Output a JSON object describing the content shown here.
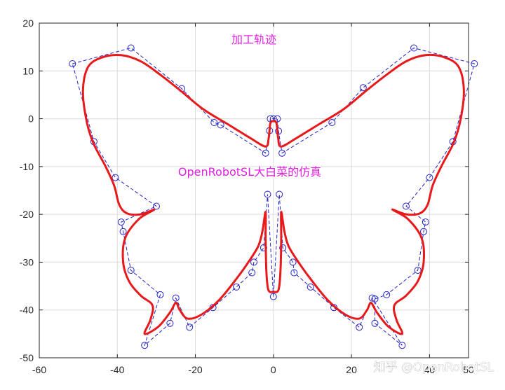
{
  "chart_data": {
    "type": "line",
    "title": "",
    "xlabel": "",
    "ylabel": "",
    "xlim": [
      -60,
      50
    ],
    "ylim": [
      -50,
      20
    ],
    "grid": true,
    "x_ticks": [
      -60,
      -40,
      -20,
      0,
      20,
      40,
      50
    ],
    "y_ticks": [
      -50,
      -40,
      -30,
      -20,
      -10,
      0,
      10,
      20
    ],
    "x_tick_labels": [
      "-60",
      "-40",
      "-20",
      "0",
      "20",
      "40",
      "50"
    ],
    "y_tick_labels": [
      "-50",
      "-40",
      "-30",
      "-20",
      "-10",
      "0",
      "10",
      "20"
    ],
    "annotations": [
      "加工轨迹",
      "OpenRobotSL大白菜的仿真"
    ],
    "watermark": "知乎 @OpenRobotSL",
    "colors": {
      "curve": "#e8191b",
      "control_polygon": "#2323c8",
      "control_points": "#2323c8",
      "annotation": "#e020e0",
      "grid": "#dcdcdc"
    },
    "series": [
      {
        "style": "control-polygon",
        "points": [
          [
            -51.5,
            11.5
          ],
          [
            -36.5,
            14.8
          ],
          [
            -23.5,
            6.3
          ],
          [
            -15.2,
            -0.8
          ],
          [
            -13.5,
            -1.3
          ],
          [
            -2.0,
            -7.2
          ],
          [
            -1.0,
            -2.5
          ],
          [
            -0.8,
            0.0
          ],
          [
            0.0,
            0.0
          ],
          [
            1.0,
            0.0
          ],
          [
            1.3,
            -2.6
          ],
          [
            2.2,
            -7.2
          ],
          [
            15.0,
            -0.8
          ],
          [
            23.0,
            6.5
          ],
          [
            36.0,
            14.8
          ],
          [
            51.5,
            11.5
          ],
          [
            46.0,
            -4.8
          ],
          [
            40.0,
            -12.3
          ],
          [
            34.0,
            -18.3
          ],
          [
            39.0,
            -21.6
          ],
          [
            38.5,
            -23.6
          ],
          [
            37.0,
            -31.7
          ],
          [
            29.0,
            -36.8
          ],
          [
            26.0,
            -37.7
          ],
          [
            26.0,
            -42.8
          ],
          [
            33.0,
            -47.4
          ],
          [
            25.3,
            -37.5
          ],
          [
            22.0,
            -43.6
          ],
          [
            15.5,
            -39.5
          ],
          [
            9.5,
            -35.2
          ],
          [
            5.3,
            -32.2
          ],
          [
            5.0,
            -30.0
          ],
          [
            2.4,
            -27.0
          ],
          [
            1.5,
            -15.8
          ],
          [
            0.0,
            -37.2
          ],
          [
            -1.5,
            -15.8
          ],
          [
            -2.5,
            -27.0
          ],
          [
            -5.0,
            -30.0
          ],
          [
            -5.5,
            -32.2
          ],
          [
            -9.5,
            -35.2
          ],
          [
            -15.5,
            -39.5
          ],
          [
            -21.5,
            -43.6
          ],
          [
            -25.0,
            -37.5
          ],
          [
            -26.5,
            -42.8
          ],
          [
            -33.0,
            -47.4
          ],
          [
            -29.0,
            -36.8
          ],
          [
            -36.5,
            -31.7
          ],
          [
            -38.5,
            -23.6
          ],
          [
            -39.0,
            -21.6
          ],
          [
            -30.0,
            -18.3
          ],
          [
            -40.5,
            -12.3
          ],
          [
            -46.0,
            -4.8
          ],
          [
            -51.5,
            11.5
          ]
        ]
      },
      {
        "style": "curve",
        "points": [
          [
            -2.0,
            -5.8
          ],
          [
            -6.0,
            -4.0
          ],
          [
            -12.0,
            -1.0
          ],
          [
            -18.0,
            2.0
          ],
          [
            -24.0,
            6.0
          ],
          [
            -29.0,
            9.2
          ],
          [
            -34.0,
            12.0
          ],
          [
            -39.0,
            13.3
          ],
          [
            -44.0,
            12.8
          ],
          [
            -47.5,
            10.8
          ],
          [
            -48.8,
            6.0
          ],
          [
            -48.0,
            0.0
          ],
          [
            -46.2,
            -5.0
          ],
          [
            -43.0,
            -10.0
          ],
          [
            -40.8,
            -14.0
          ],
          [
            -39.5,
            -18.0
          ],
          [
            -37.5,
            -19.8
          ],
          [
            -34.0,
            -20.0
          ],
          [
            -30.5,
            -19.0
          ],
          [
            -34.5,
            -21.0
          ],
          [
            -38.0,
            -25.0
          ],
          [
            -38.5,
            -30.0
          ],
          [
            -37.0,
            -34.0
          ],
          [
            -34.0,
            -37.0
          ],
          [
            -31.0,
            -39.0
          ],
          [
            -31.5,
            -42.0
          ],
          [
            -33.0,
            -45.0
          ],
          [
            -29.5,
            -43.5
          ],
          [
            -26.5,
            -40.5
          ],
          [
            -25.0,
            -38.5
          ],
          [
            -24.0,
            -40.0
          ],
          [
            -22.0,
            -41.8
          ],
          [
            -18.5,
            -41.0
          ],
          [
            -14.0,
            -38.0
          ],
          [
            -9.5,
            -33.5
          ],
          [
            -6.0,
            -29.5
          ],
          [
            -3.8,
            -26.5
          ],
          [
            -2.8,
            -23.5
          ],
          [
            -2.0,
            -19.5
          ],
          [
            -2.0,
            -25.0
          ],
          [
            -1.8,
            -32.0
          ],
          [
            -1.3,
            -35.8
          ],
          [
            0.0,
            -36.2
          ],
          [
            1.3,
            -35.8
          ],
          [
            1.8,
            -32.0
          ],
          [
            2.0,
            -25.0
          ],
          [
            2.0,
            -19.5
          ],
          [
            2.8,
            -23.5
          ],
          [
            3.8,
            -26.5
          ],
          [
            6.0,
            -29.5
          ],
          [
            9.5,
            -33.5
          ],
          [
            14.0,
            -38.0
          ],
          [
            18.5,
            -41.0
          ],
          [
            22.0,
            -41.8
          ],
          [
            24.0,
            -40.0
          ],
          [
            25.0,
            -38.5
          ],
          [
            26.5,
            -40.5
          ],
          [
            29.5,
            -43.5
          ],
          [
            33.0,
            -45.0
          ],
          [
            31.5,
            -42.0
          ],
          [
            31.0,
            -39.0
          ],
          [
            34.0,
            -37.0
          ],
          [
            37.0,
            -34.0
          ],
          [
            38.5,
            -30.0
          ],
          [
            38.0,
            -25.0
          ],
          [
            34.5,
            -21.0
          ],
          [
            30.5,
            -19.0
          ],
          [
            34.0,
            -20.0
          ],
          [
            37.5,
            -19.8
          ],
          [
            39.5,
            -18.0
          ],
          [
            40.8,
            -14.0
          ],
          [
            43.0,
            -10.0
          ],
          [
            46.2,
            -5.0
          ],
          [
            48.0,
            0.0
          ],
          [
            48.8,
            6.0
          ],
          [
            47.5,
            10.8
          ],
          [
            44.0,
            12.8
          ],
          [
            39.0,
            13.3
          ],
          [
            34.0,
            12.0
          ],
          [
            29.0,
            9.2
          ],
          [
            24.0,
            6.0
          ],
          [
            18.0,
            2.0
          ],
          [
            12.0,
            -1.0
          ],
          [
            6.0,
            -4.0
          ],
          [
            2.0,
            -5.8
          ],
          [
            1.2,
            -4.0
          ],
          [
            0.8,
            -1.0
          ],
          [
            0.0,
            -0.5
          ],
          [
            -0.8,
            -1.0
          ],
          [
            -1.2,
            -4.0
          ],
          [
            -2.0,
            -5.8
          ]
        ]
      }
    ]
  }
}
